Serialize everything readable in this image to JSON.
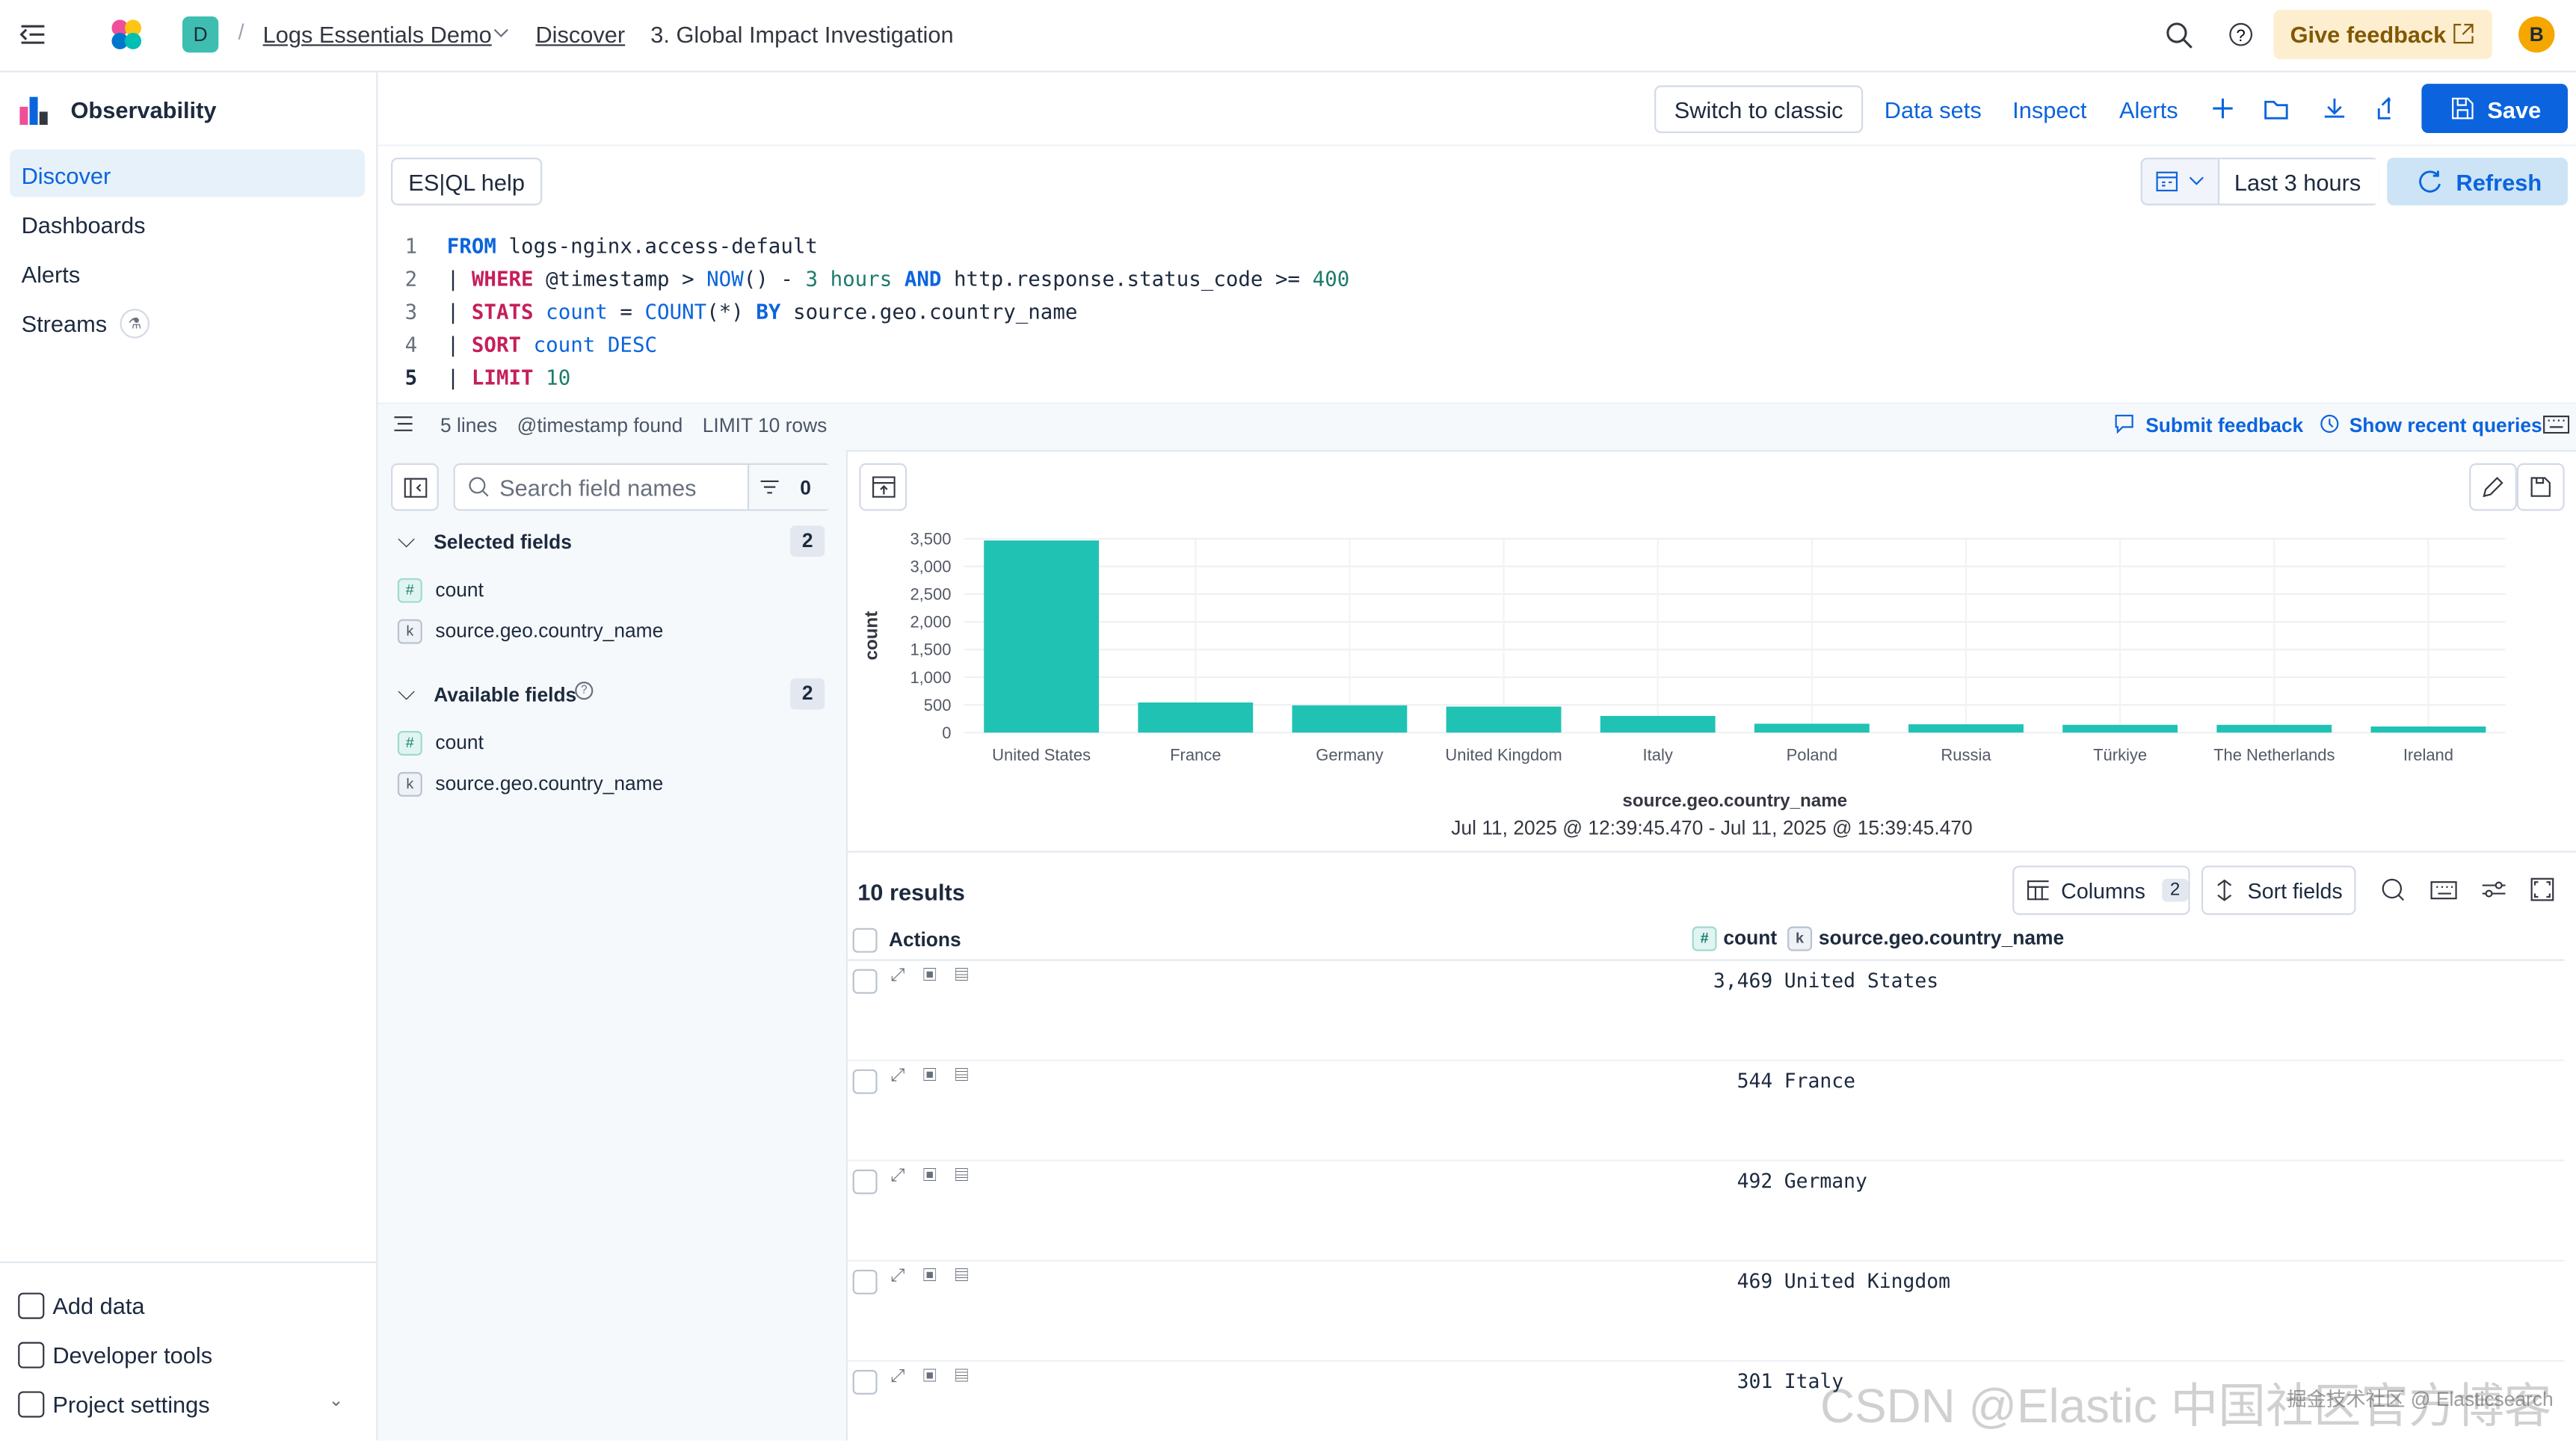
{
  "topbar": {
    "project_badge": "D",
    "breadcrumbs": [
      "Logs Essentials Demo",
      "Discover",
      "3. Global Impact Investigation"
    ],
    "feedback": "Give feedback",
    "avatar": "B"
  },
  "sidebar": {
    "title": "Observability",
    "nav": [
      "Discover",
      "Dashboards",
      "Alerts",
      "Streams"
    ],
    "footer": [
      "Add data",
      "Developer tools",
      "Project settings"
    ]
  },
  "toolbar": {
    "buttons": [
      "Switch to classic",
      "Data sets",
      "Inspect",
      "Alerts"
    ],
    "save": "Save"
  },
  "editor": {
    "help": "ES|QL help",
    "time_range": "Last 3 hours",
    "refresh": "Refresh",
    "line_numbers": [
      1,
      2,
      3,
      4,
      5
    ],
    "lines": [
      [
        {
          "t": "FROM",
          "k": "kw"
        },
        {
          "t": " logs-nginx.access-default",
          "k": "src"
        }
      ],
      [
        {
          "t": "| ",
          "k": "plain"
        },
        {
          "t": "WHERE",
          "k": "cmd"
        },
        {
          "t": " @timestamp > ",
          "k": "plain"
        },
        {
          "t": "NOW",
          "k": "fn"
        },
        {
          "t": "() - ",
          "k": "plain"
        },
        {
          "t": "3 hours",
          "k": "num"
        },
        {
          "t": " ",
          "k": "plain"
        },
        {
          "t": "AND",
          "k": "kw"
        },
        {
          "t": " http.response.status_code >= ",
          "k": "plain"
        },
        {
          "t": "400",
          "k": "num"
        }
      ],
      [
        {
          "t": "| ",
          "k": "plain"
        },
        {
          "t": "STATS",
          "k": "cmd"
        },
        {
          "t": " ",
          "k": "plain"
        },
        {
          "t": "count",
          "k": "fn"
        },
        {
          "t": " = ",
          "k": "plain"
        },
        {
          "t": "COUNT",
          "k": "fn"
        },
        {
          "t": "(*) ",
          "k": "plain"
        },
        {
          "t": "BY",
          "k": "kw"
        },
        {
          "t": " source.geo.country_name",
          "k": "plain"
        }
      ],
      [
        {
          "t": "| ",
          "k": "plain"
        },
        {
          "t": "SORT",
          "k": "cmd"
        },
        {
          "t": " ",
          "k": "plain"
        },
        {
          "t": "count",
          "k": "fn"
        },
        {
          "t": " ",
          "k": "plain"
        },
        {
          "t": "DESC",
          "k": "fn"
        }
      ],
      [
        {
          "t": "| ",
          "k": "plain"
        },
        {
          "t": "LIMIT",
          "k": "cmd"
        },
        {
          "t": " ",
          "k": "plain"
        },
        {
          "t": "10",
          "k": "num"
        }
      ]
    ],
    "status": [
      "5 lines",
      "@timestamp found",
      "LIMIT 10 rows"
    ],
    "actions": [
      "Submit feedback",
      "Show recent queries"
    ]
  },
  "fields": {
    "search_placeholder": "Search field names",
    "filter_count": 0,
    "groups": [
      {
        "title": "Selected fields",
        "count": 2,
        "items": [
          {
            "type": "#",
            "name": "count"
          },
          {
            "type": "k",
            "name": "source.geo.country_name"
          }
        ]
      },
      {
        "title": "Available fields",
        "count": 2,
        "items": [
          {
            "type": "#",
            "name": "count"
          },
          {
            "type": "k",
            "name": "source.geo.country_name"
          }
        ]
      }
    ]
  },
  "chart_data": {
    "type": "bar",
    "y_label": "count",
    "x_label": "source.geo.country_name",
    "subtitle": "Jul 11, 2025 @ 12:39:45.470 - Jul 11, 2025 @ 15:39:45.470",
    "categories": [
      "United States",
      "France",
      "Germany",
      "United Kingdom",
      "Italy",
      "Poland",
      "Russia",
      "Türkiye",
      "The Netherlands",
      "Ireland"
    ],
    "values": [
      3469,
      544,
      492,
      469,
      301,
      160,
      150,
      140,
      140,
      110
    ],
    "color": "#20c2b3",
    "ylim": [
      0,
      3500
    ],
    "yticks": [
      0,
      500,
      {
        "value": 1000,
        "label": "1,000"
      },
      {
        "value": 1500,
        "label": "1,500"
      },
      {
        "value": 2000,
        "label": "2,000"
      },
      {
        "value": 2500,
        "label": "2,500"
      },
      {
        "value": 3000,
        "label": "3,000"
      },
      {
        "value": 3500,
        "label": "3,500"
      }
    ],
    "grid": true
  },
  "table": {
    "title": "10 results",
    "columns_button": "Columns",
    "columns_count": 2,
    "sort_button": "Sort fields",
    "header": [
      "Actions",
      "count",
      "source.geo.country_name"
    ],
    "header_types": [
      "#",
      "k"
    ],
    "rows": [
      [
        "3,469",
        "United States"
      ],
      [
        "544",
        "France"
      ],
      [
        "492",
        "Germany"
      ],
      [
        "469",
        "United Kingdom"
      ],
      [
        "301",
        "Italy"
      ]
    ]
  },
  "watermark": [
    "CSDN @Elastic 中国社区官方博客",
    "掘金技术社区 @ Elasticsearch"
  ]
}
